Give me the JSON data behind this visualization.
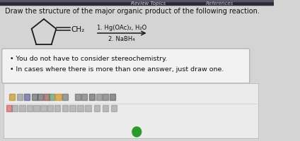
{
  "bg_color": "#d4d4d4",
  "header_bar_color": "#2a2a3a",
  "header_text_left": "Review Topics",
  "header_text_right": "References",
  "main_text": "Draw the structure of the major organic product of the following reaction.",
  "reagent_line1": "1. Hg(OAc)₂, H₂O",
  "reagent_line2": "2. NaBH₄",
  "ch2_label": "CH₂",
  "bullet1": "You do not have to consider stereochemistry.",
  "bullet2": "In cases where there is more than one answer, just draw one.",
  "box_bg": "#f2f2f2",
  "box_border": "#aaaaaa",
  "text_color": "#111111",
  "toolbar_bg": "#e0e0e0",
  "toolbar_border": "#bbbbbb",
  "main_fontsize": 7.0,
  "small_fontsize": 6.8,
  "header_fontsize": 5.0
}
